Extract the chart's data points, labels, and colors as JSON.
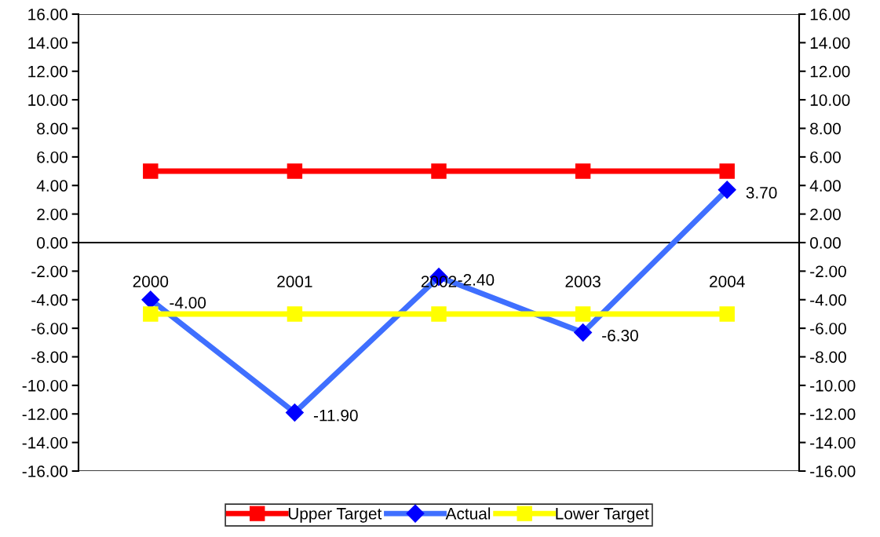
{
  "chart_data": {
    "type": "line",
    "categories": [
      "2000",
      "2001",
      "2002",
      "2003",
      "2004"
    ],
    "series": [
      {
        "name": "Upper Target",
        "color": "#ff0000",
        "marker": "square",
        "values": [
          5,
          5,
          5,
          5,
          5
        ]
      },
      {
        "name": "Actual",
        "color": "#3f6fff",
        "marker": "diamond",
        "values": [
          -4.0,
          -11.9,
          -2.4,
          -6.3,
          3.7
        ],
        "value_labels": [
          "-4.00",
          "-11.90",
          "-2.40",
          "-6.30",
          "3.70"
        ]
      },
      {
        "name": "Lower Target",
        "color": "#ffff00",
        "marker": "square",
        "values": [
          -5,
          -5,
          -5,
          -5,
          -5
        ]
      }
    ],
    "ylim": [
      -16,
      16
    ],
    "yticks": [
      {
        "value": -16,
        "label": "-16.00"
      },
      {
        "value": -14,
        "label": "-14.00"
      },
      {
        "value": -12,
        "label": "-12.00"
      },
      {
        "value": -10,
        "label": "-10.00"
      },
      {
        "value": -8,
        "label": "-8.00"
      },
      {
        "value": -6,
        "label": "-6.00"
      },
      {
        "value": -4,
        "label": "-4.00"
      },
      {
        "value": -2,
        "label": "-2.00"
      },
      {
        "value": 0,
        "label": "0.00"
      },
      {
        "value": 2,
        "label": "2.00"
      },
      {
        "value": 4,
        "label": "4.00"
      },
      {
        "value": 6,
        "label": "6.00"
      },
      {
        "value": 8,
        "label": "8.00"
      },
      {
        "value": 10,
        "label": "10.00"
      },
      {
        "value": 12,
        "label": "12.00"
      },
      {
        "value": 14,
        "label": "14.00"
      },
      {
        "value": 16,
        "label": "16.00"
      }
    ],
    "y2lim": [
      -16,
      16
    ],
    "y2ticks": [
      {
        "value": -16,
        "label": "-16.00"
      },
      {
        "value": -14,
        "label": "-14.00"
      },
      {
        "value": -12,
        "label": "-12.00"
      },
      {
        "value": -10,
        "label": "-10.00"
      },
      {
        "value": -8,
        "label": "-8.00"
      },
      {
        "value": -6,
        "label": "-6.00"
      },
      {
        "value": -4,
        "label": "-4.00"
      },
      {
        "value": -2,
        "label": "-2.00"
      },
      {
        "value": 0,
        "label": "0.00"
      },
      {
        "value": 2,
        "label": "2.00"
      },
      {
        "value": 4,
        "label": "4.00"
      },
      {
        "value": 6,
        "label": "6.00"
      },
      {
        "value": 8,
        "label": "8.00"
      },
      {
        "value": 10,
        "label": "10.00"
      },
      {
        "value": 12,
        "label": "12.00"
      },
      {
        "value": 14,
        "label": "14.00"
      },
      {
        "value": 16,
        "label": "16.00"
      }
    ],
    "grid": false,
    "legend": "bottom",
    "line_style": "solid"
  }
}
